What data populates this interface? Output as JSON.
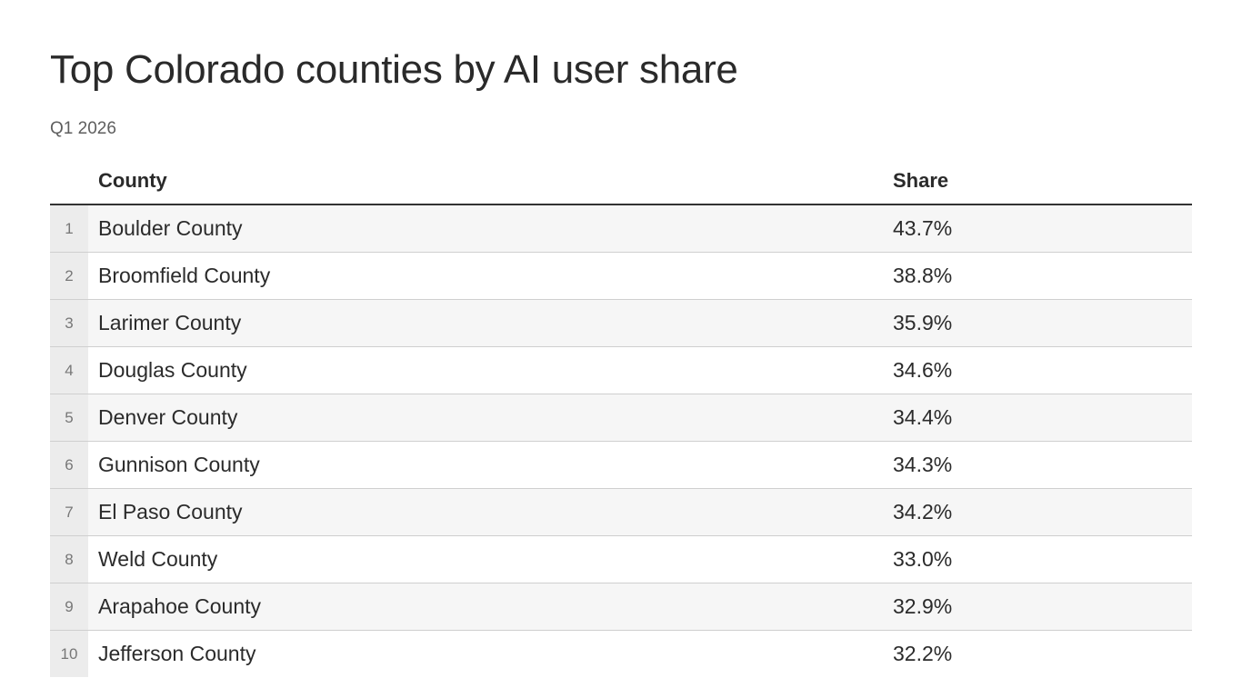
{
  "chart_data": {
    "type": "table",
    "title": "Top Colorado counties by AI user share",
    "subtitle": "Q1 2026",
    "columns": [
      "County",
      "Share"
    ],
    "rows": [
      {
        "rank": "1",
        "county": "Boulder County",
        "share": "43.7%",
        "value": 43.7
      },
      {
        "rank": "2",
        "county": "Broomfield County",
        "share": "38.8%",
        "value": 38.8
      },
      {
        "rank": "3",
        "county": "Larimer County",
        "share": "35.9%",
        "value": 35.9
      },
      {
        "rank": "4",
        "county": "Douglas County",
        "share": "34.6%",
        "value": 34.6
      },
      {
        "rank": "5",
        "county": "Denver County",
        "share": "34.4%",
        "value": 34.4
      },
      {
        "rank": "6",
        "county": "Gunnison County",
        "share": "34.3%",
        "value": 34.3
      },
      {
        "rank": "7",
        "county": "El Paso County",
        "share": "34.2%",
        "value": 34.2
      },
      {
        "rank": "8",
        "county": "Weld County",
        "share": "33.0%",
        "value": 33.0
      },
      {
        "rank": "9",
        "county": "Arapahoe County",
        "share": "32.9%",
        "value": 32.9
      },
      {
        "rank": "10",
        "county": "Jefferson County",
        "share": "32.2%",
        "value": 32.2
      }
    ]
  },
  "colors": {
    "text": "#2b2b2b",
    "subtitle": "#5e5e5e",
    "rank_bg": "#ececec",
    "stripe": "#f6f6f6",
    "divider": "#cfcfcf",
    "header_rule": "#333333"
  }
}
